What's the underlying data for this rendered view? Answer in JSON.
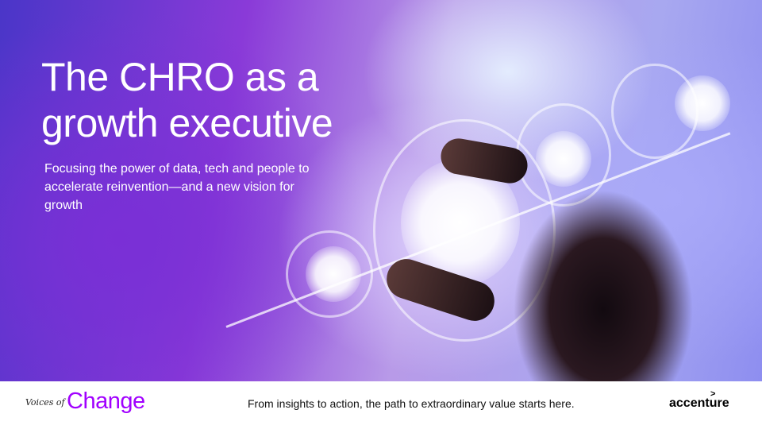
{
  "hero": {
    "title": "The CHRO as a growth executive",
    "subtitle": "Focusing the power of data, tech and people to accelerate reinvention—and a new vision for growth"
  },
  "footer": {
    "series_prefix": "Voices of",
    "series_name": "Change",
    "tagline": "From insights to action, the path to extraordinary value starts here.",
    "brand": "accenture",
    "brand_mark": ">",
    "accent_color": "#a100ff"
  }
}
